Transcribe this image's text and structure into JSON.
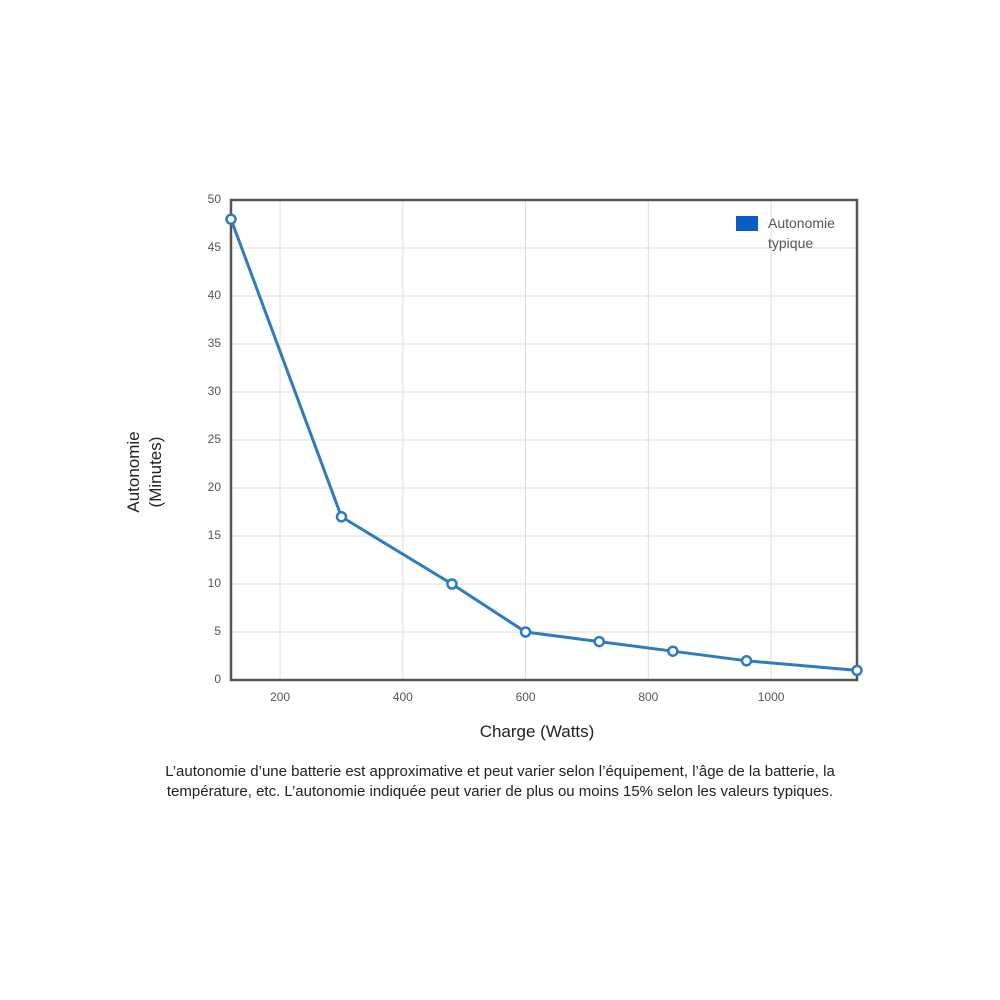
{
  "chart_data": {
    "type": "line",
    "x_label": "Charge (Watts)",
    "y_label": "Autonomie (Minutes)",
    "note": "L’autonomie d’une batterie est approximative et peut varier selon l’équipement, l’âge de la batterie, la température, etc. L’autonomie indiquée peut varier de plus ou moins 15% selon les valeurs typiques.",
    "x": [
      120,
      300,
      480,
      600,
      720,
      840,
      960,
      1140
    ],
    "series": [
      {
        "name": "Autonomie typique",
        "color": "#2e7bc0",
        "values": [
          48,
          17,
          10,
          5,
          4,
          3,
          2,
          1
        ]
      }
    ],
    "xlim": [
      120,
      1140
    ],
    "xticks": [
      200,
      400,
      600,
      800,
      1000
    ],
    "ylim": [
      0,
      50
    ],
    "yticks": [
      0,
      5,
      10,
      15,
      20,
      25,
      30,
      35,
      40,
      45,
      50
    ],
    "grid": true,
    "legend": "top-right",
    "legend_color": "#0a5fc0"
  }
}
